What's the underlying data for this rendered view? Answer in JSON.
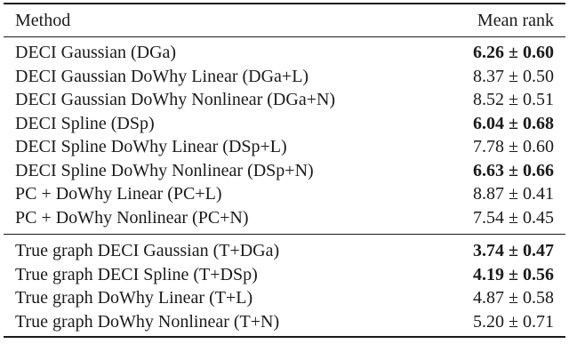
{
  "table": {
    "header": {
      "method": "Method",
      "rank": "Mean rank"
    },
    "group1": [
      {
        "method": "DECI Gaussian (DGa)",
        "rank": "6.26 ± 0.60",
        "bold": true
      },
      {
        "method": "DECI Gaussian DoWhy Linear (DGa+L)",
        "rank": "8.37 ± 0.50",
        "bold": false
      },
      {
        "method": "DECI Gaussian DoWhy Nonlinear (DGa+N)",
        "rank": "8.52 ± 0.51",
        "bold": false
      },
      {
        "method": "DECI Spline (DSp)",
        "rank": "6.04 ± 0.68",
        "bold": true
      },
      {
        "method": "DECI Spline DoWhy Linear (DSp+L)",
        "rank": "7.78 ± 0.60",
        "bold": false
      },
      {
        "method": "DECI Spline DoWhy Nonlinear (DSp+N)",
        "rank": "6.63 ± 0.66",
        "bold": true
      },
      {
        "method": "PC + DoWhy Linear (PC+L)",
        "rank": "8.87 ± 0.41",
        "bold": false
      },
      {
        "method": "PC + DoWhy Nonlinear (PC+N)",
        "rank": "7.54 ± 0.45",
        "bold": false
      }
    ],
    "group2": [
      {
        "method": "True graph DECI Gaussian (T+DGa)",
        "rank": "3.74 ± 0.47",
        "bold": true
      },
      {
        "method": "True graph DECI Spline (T+DSp)",
        "rank": "4.19 ± 0.56",
        "bold": true
      },
      {
        "method": "True graph DoWhy Linear (T+L)",
        "rank": "4.87 ± 0.58",
        "bold": false
      },
      {
        "method": "True graph DoWhy Nonlinear (T+N)",
        "rank": "5.20 ± 0.71",
        "bold": false
      }
    ]
  }
}
